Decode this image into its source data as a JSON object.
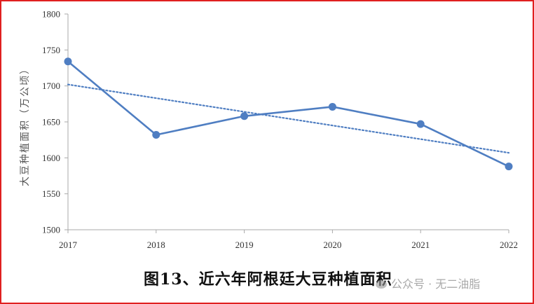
{
  "caption": "图13、近六年阿根廷大豆种植面积",
  "watermark": "公众号 · 无二油脂",
  "colors": {
    "line": "#4f7ec2",
    "trend": "#4f7ec2",
    "frame": "#e02020",
    "axis": "#aaaaaa"
  },
  "chart_data": {
    "type": "line",
    "title": "图13、近六年阿根廷大豆种植面积",
    "xlabel": "",
    "ylabel": "大豆种植面积（万公顷）",
    "categories": [
      "2017",
      "2018",
      "2019",
      "2020",
      "2021",
      "2022"
    ],
    "series": [
      {
        "values": [
          1734,
          1632,
          1658,
          1671,
          1647,
          1588
        ]
      }
    ],
    "trendline": {
      "type": "linear",
      "start": 1702,
      "end": 1607
    },
    "ylim": [
      1500,
      1800
    ],
    "yticks": [
      "1500",
      "1550",
      "1600",
      "1650",
      "1700",
      "1750",
      "1800"
    ],
    "grid": false,
    "legend": "none"
  }
}
